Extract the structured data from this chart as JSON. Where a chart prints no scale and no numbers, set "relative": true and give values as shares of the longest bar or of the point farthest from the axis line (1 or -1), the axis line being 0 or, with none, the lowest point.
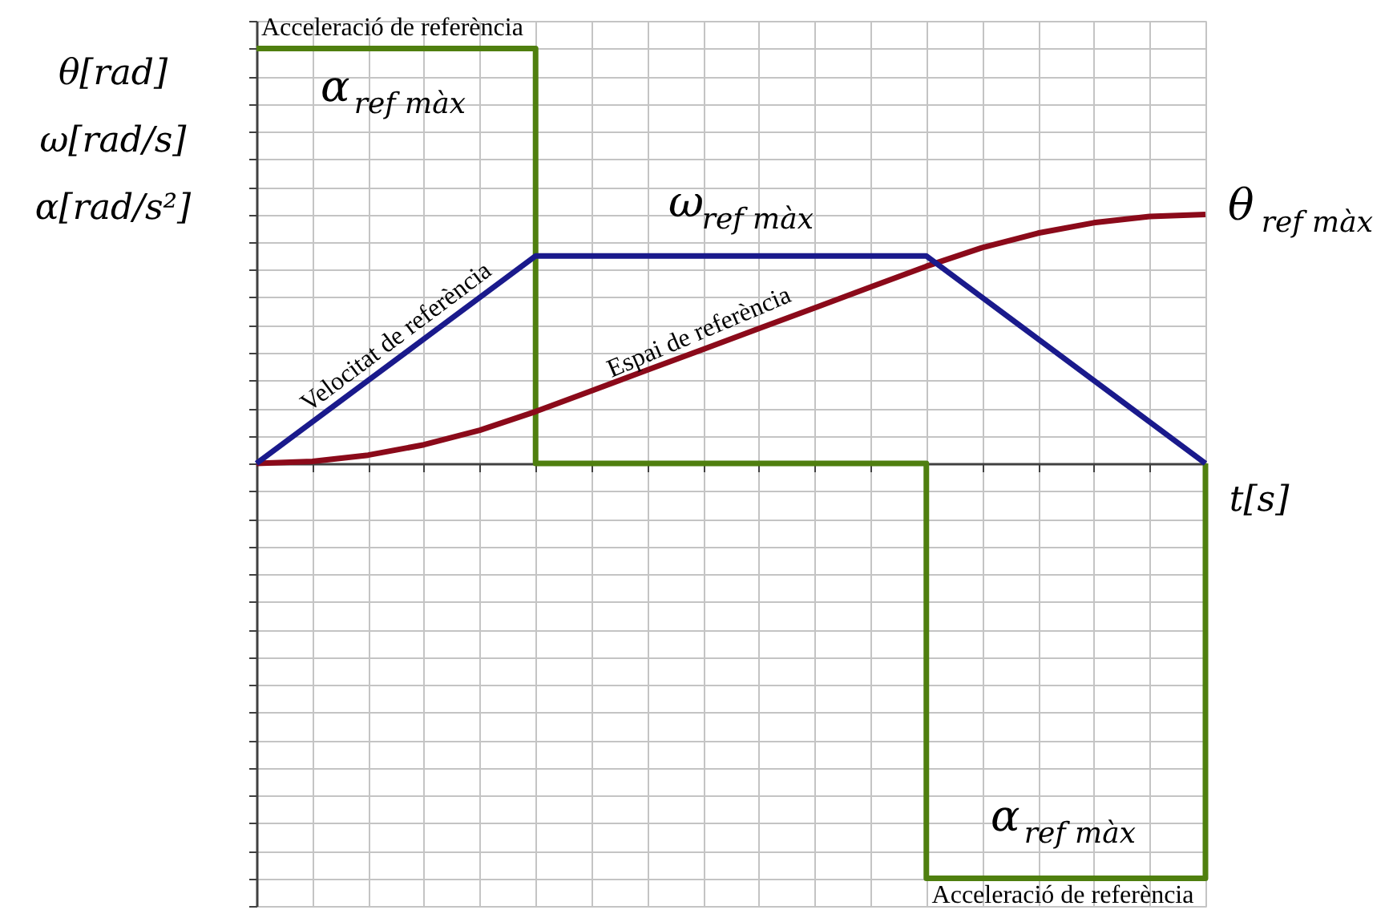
{
  "chart_data": {
    "type": "line",
    "relative": true,
    "categories": [
      null,
      null,
      null,
      null,
      null,
      null,
      null,
      null,
      null,
      null,
      null,
      null,
      null,
      null,
      null,
      null,
      null,
      null
    ],
    "series": [
      {
        "name": "Acceleració de referència",
        "type": "step",
        "color": "#4f7f0f",
        "values": [
          1,
          1,
          1,
          1,
          1,
          0,
          0,
          0,
          0,
          0,
          0,
          0,
          -1,
          -1,
          -1,
          -1,
          -1,
          0
        ]
      },
      {
        "name": "Espai de referència",
        "type": "line",
        "color": "#8b0a1a",
        "values": [
          0,
          0.005,
          0.02,
          0.045,
          0.08,
          0.125,
          0.175,
          0.225,
          0.275,
          0.325,
          0.375,
          0.425,
          0.475,
          0.52,
          0.555,
          0.58,
          0.595,
          0.6
        ]
      },
      {
        "name": "Velocitat de referència",
        "type": "line",
        "color": "#1a1a8c",
        "values": [
          0,
          0.1,
          0.2,
          0.3,
          0.4,
          0.5,
          0.5,
          0.5,
          0.5,
          0.5,
          0.5,
          0.5,
          0.5,
          0.4,
          0.3,
          0.2,
          0.1,
          0
        ]
      }
    ],
    "xlabel": "t[s]",
    "ylabel": "θ[rad]\nω[rad/s]\nα[rad/s²]",
    "annotations": [
      "α$_{ref màx}$",
      "ω$_{ref màx}$",
      "θ$_{ref màx}$",
      "α$_{ref màx}$",
      "Acceleració de referència"
    ],
    "grid": true,
    "line_style": "solid"
  }
}
